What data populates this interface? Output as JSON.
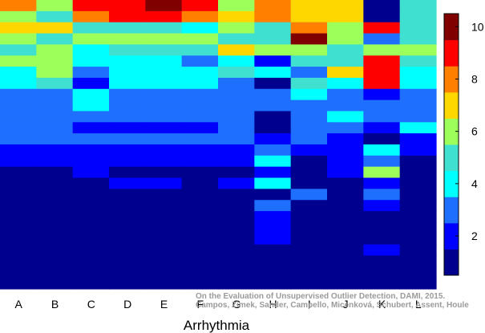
{
  "chart_data": {
    "type": "heatmap",
    "title": "",
    "xlabel": "Arrhythmia",
    "ylabel": "",
    "x": [
      "A",
      "B",
      "C",
      "D",
      "E",
      "F",
      "G",
      "H",
      "I",
      "J",
      "K",
      "L"
    ],
    "rows_top_to_bottom": [
      [
        8,
        6,
        9,
        9,
        10,
        9,
        6,
        8,
        7,
        7,
        1,
        5
      ],
      [
        6,
        5,
        8,
        9,
        9,
        8,
        7,
        8,
        7,
        7,
        1,
        5
      ],
      [
        7,
        7,
        5,
        5,
        5,
        4,
        6,
        5,
        8,
        6,
        9,
        5
      ],
      [
        6,
        5,
        6,
        6,
        6,
        6,
        5,
        5,
        10,
        6,
        3,
        5
      ],
      [
        5,
        6,
        4,
        5,
        5,
        5,
        7,
        6,
        6,
        5,
        6,
        6
      ],
      [
        6,
        6,
        4,
        4,
        4,
        3,
        4,
        2,
        5,
        5,
        9,
        5
      ],
      [
        4,
        6,
        3,
        4,
        4,
        4,
        5,
        4,
        3,
        7,
        9,
        4
      ],
      [
        4,
        5,
        2,
        4,
        4,
        4,
        3,
        1,
        5,
        4,
        9,
        4
      ],
      [
        3,
        3,
        4,
        3,
        3,
        3,
        3,
        3,
        4,
        3,
        2,
        3
      ],
      [
        3,
        3,
        4,
        3,
        3,
        3,
        3,
        3,
        3,
        3,
        3,
        3
      ],
      [
        3,
        3,
        3,
        3,
        3,
        3,
        3,
        1,
        3,
        4,
        3,
        3
      ],
      [
        3,
        3,
        2,
        2,
        2,
        2,
        3,
        1,
        3,
        3,
        2,
        4
      ],
      [
        3,
        3,
        3,
        3,
        3,
        3,
        3,
        2,
        3,
        2,
        1,
        2
      ],
      [
        2,
        2,
        2,
        2,
        2,
        2,
        2,
        3,
        2,
        2,
        4,
        2
      ],
      [
        2,
        2,
        2,
        2,
        2,
        2,
        2,
        4,
        1,
        2,
        3,
        1
      ],
      [
        1,
        1,
        2,
        1,
        1,
        1,
        1,
        2,
        1,
        2,
        6,
        1
      ],
      [
        1,
        1,
        1,
        2,
        2,
        1,
        2,
        4,
        1,
        1,
        2,
        1
      ],
      [
        1,
        1,
        1,
        1,
        1,
        1,
        1,
        1,
        3,
        1,
        3,
        1
      ],
      [
        1,
        1,
        1,
        1,
        1,
        1,
        1,
        3,
        1,
        1,
        2,
        1
      ],
      [
        1,
        1,
        1,
        1,
        1,
        1,
        1,
        2,
        1,
        1,
        1,
        1
      ],
      [
        1,
        1,
        1,
        1,
        1,
        1,
        1,
        2,
        1,
        1,
        1,
        1
      ],
      [
        1,
        1,
        1,
        1,
        1,
        1,
        1,
        2,
        1,
        1,
        1,
        1
      ],
      [
        1,
        1,
        1,
        1,
        1,
        1,
        1,
        1,
        1,
        1,
        2,
        1
      ],
      [
        1,
        1,
        1,
        1,
        1,
        1,
        1,
        1,
        1,
        1,
        1,
        1
      ],
      [
        1,
        1,
        1,
        1,
        1,
        1,
        1,
        1,
        1,
        1,
        1,
        1
      ],
      [
        1,
        1,
        1,
        1,
        1,
        1,
        1,
        1,
        1,
        1,
        1,
        1
      ]
    ],
    "colorbar": {
      "range": [
        0.5,
        10.5
      ],
      "ticks": [
        2,
        4,
        6,
        8,
        10
      ],
      "colormap": [
        "#00008f",
        "#0000ff",
        "#1f6fff",
        "#00ffff",
        "#40e0d0",
        "#9cff5a",
        "#ffd700",
        "#ff7f00",
        "#ff0000",
        "#800000"
      ]
    },
    "watermark": {
      "line1": "On the Evaluation of Unsupervised Outlier Detection, DAMI, 2015.",
      "line2": "Campos, Zimek, Sander, Campello, Micenková, Schubert, Assent, Houle"
    }
  }
}
